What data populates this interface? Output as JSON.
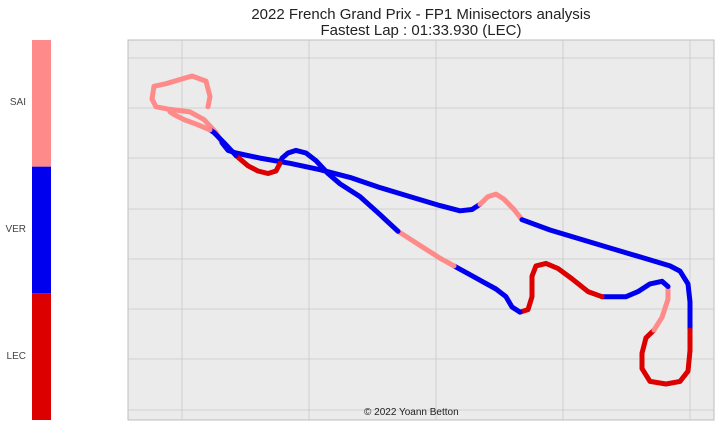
{
  "chart_data": {
    "type": "line",
    "title": "2022 French Grand Prix - FP1 Minisectors analysis",
    "subtitle": "Fastest Lap : 01:33.930 (LEC)",
    "credit": "© 2022 Yoann Betton",
    "grid": true,
    "axes_ticks_visible": false,
    "colorbar": {
      "position": "left",
      "entries": [
        {
          "label": "SAI",
          "color": "#ff8a8a"
        },
        {
          "label": "VER",
          "color": "#0000ee"
        },
        {
          "label": "LEC",
          "color": "#dd0000"
        }
      ]
    },
    "track_segments": [
      {
        "driver": "SAI",
        "points": [
          [
            -112,
            4
          ],
          [
            -110,
            12
          ],
          [
            -114,
            24
          ],
          [
            -128,
            28
          ],
          [
            -154,
            22
          ],
          [
            -166,
            20
          ],
          [
            -168,
            10
          ],
          [
            -164,
            4
          ],
          [
            -150,
            2
          ],
          [
            -130,
            0
          ],
          [
            -116,
            -6
          ],
          [
            -104,
            -16
          ],
          [
            -98,
            -24
          ]
        ]
      },
      {
        "driver": "VER",
        "points": [
          [
            -98,
            -24
          ],
          [
            -92,
            -30
          ],
          [
            -84,
            -32
          ],
          [
            -60,
            -36
          ],
          [
            -30,
            -40
          ],
          [
            0,
            -45
          ],
          [
            30,
            -51
          ],
          [
            60,
            -59
          ],
          [
            90,
            -66
          ],
          [
            120,
            -73
          ],
          [
            140,
            -77
          ],
          [
            152,
            -76
          ],
          [
            160,
            -72
          ]
        ]
      },
      {
        "driver": "SAI",
        "points": [
          [
            160,
            -72
          ],
          [
            168,
            -66
          ],
          [
            176,
            -64
          ],
          [
            184,
            -68
          ],
          [
            194,
            -76
          ],
          [
            202,
            -84
          ]
        ]
      },
      {
        "driver": "VER",
        "points": [
          [
            202,
            -84
          ],
          [
            230,
            -92
          ],
          [
            260,
            -99
          ],
          [
            290,
            -106
          ],
          [
            320,
            -113
          ],
          [
            350,
            -120
          ],
          [
            360,
            -124
          ],
          [
            368,
            -134
          ],
          [
            370,
            -148
          ],
          [
            370,
            -170
          ]
        ]
      },
      {
        "driver": "LEC",
        "points": [
          [
            370,
            -170
          ],
          [
            370,
            -186
          ],
          [
            368,
            -202
          ],
          [
            360,
            -210
          ],
          [
            346,
            -212
          ],
          [
            330,
            -210
          ],
          [
            322,
            -200
          ],
          [
            322,
            -188
          ],
          [
            326,
            -176
          ],
          [
            334,
            -170
          ]
        ]
      },
      {
        "driver": "SAI",
        "points": [
          [
            334,
            -170
          ],
          [
            342,
            -160
          ],
          [
            348,
            -146
          ],
          [
            348,
            -136
          ]
        ]
      },
      {
        "driver": "VER",
        "points": [
          [
            348,
            -136
          ],
          [
            342,
            -132
          ],
          [
            330,
            -134
          ],
          [
            318,
            -140
          ],
          [
            306,
            -144
          ],
          [
            282,
            -144
          ]
        ]
      },
      {
        "driver": "LEC",
        "points": [
          [
            282,
            -144
          ],
          [
            268,
            -140
          ],
          [
            252,
            -130
          ],
          [
            238,
            -122
          ],
          [
            226,
            -118
          ],
          [
            216,
            -120
          ],
          [
            212,
            -128
          ],
          [
            212,
            -144
          ],
          [
            208,
            -154
          ],
          [
            200,
            -156
          ]
        ]
      },
      {
        "driver": "VER",
        "points": [
          [
            200,
            -156
          ],
          [
            192,
            -152
          ],
          [
            186,
            -144
          ],
          [
            176,
            -138
          ],
          [
            162,
            -132
          ],
          [
            148,
            -126
          ],
          [
            134,
            -120
          ]
        ]
      },
      {
        "driver": "SAI",
        "points": [
          [
            134,
            -120
          ],
          [
            120,
            -114
          ],
          [
            104,
            -106
          ],
          [
            88,
            -98
          ],
          [
            78,
            -93
          ]
        ]
      },
      {
        "driver": "VER",
        "points": [
          [
            78,
            -93
          ],
          [
            60,
            -80
          ],
          [
            40,
            -66
          ],
          [
            20,
            -56
          ],
          [
            8,
            -48
          ],
          [
            -4,
            -38
          ],
          [
            -14,
            -32
          ],
          [
            -24,
            -30
          ],
          [
            -32,
            -32
          ],
          [
            -38,
            -36
          ],
          [
            -40,
            -40
          ]
        ]
      },
      {
        "driver": "LEC",
        "points": [
          [
            -40,
            -40
          ],
          [
            -44,
            -46
          ],
          [
            -52,
            -48
          ],
          [
            -62,
            -46
          ],
          [
            -72,
            -42
          ],
          [
            -84,
            -34
          ]
        ]
      },
      {
        "driver": "VER",
        "points": [
          [
            -84,
            -34
          ],
          [
            -96,
            -24
          ],
          [
            -106,
            -16
          ],
          [
            -110,
            -14
          ]
        ]
      },
      {
        "driver": "SAI",
        "points": [
          [
            -110,
            -14
          ],
          [
            -122,
            -10
          ],
          [
            -136,
            -6
          ],
          [
            -146,
            -2
          ],
          [
            -150,
            0
          ]
        ]
      }
    ]
  }
}
